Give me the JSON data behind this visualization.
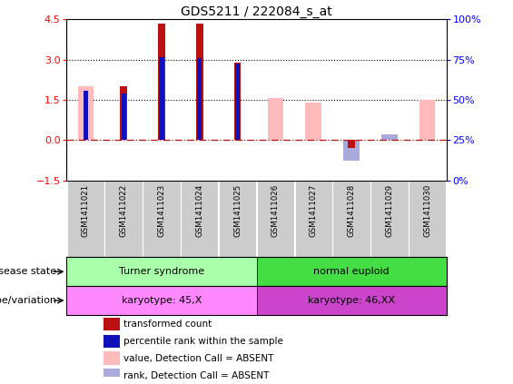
{
  "title": "GDS5211 / 222084_s_at",
  "samples": [
    "GSM1411021",
    "GSM1411022",
    "GSM1411023",
    "GSM1411024",
    "GSM1411025",
    "GSM1411026",
    "GSM1411027",
    "GSM1411028",
    "GSM1411029",
    "GSM1411030"
  ],
  "transformed_count": [
    null,
    2.0,
    4.35,
    4.35,
    2.9,
    null,
    null,
    -0.3,
    null,
    null
  ],
  "percentile_rank": [
    1.85,
    1.75,
    3.1,
    3.05,
    2.85,
    null,
    null,
    null,
    null,
    null
  ],
  "value_absent": [
    2.0,
    null,
    null,
    null,
    null,
    1.55,
    1.4,
    null,
    0.2,
    1.5
  ],
  "rank_absent": [
    null,
    null,
    null,
    null,
    null,
    null,
    null,
    -0.75,
    0.2,
    null
  ],
  "ylim_left": [
    -1.5,
    4.5
  ],
  "ylim_right": [
    0,
    100
  ],
  "yticks_left": [
    -1.5,
    0,
    1.5,
    3.0,
    4.5
  ],
  "yticks_right": [
    0,
    25,
    50,
    75,
    100
  ],
  "hlines": [
    1.5,
    3.0
  ],
  "disease_state": [
    {
      "label": "Turner syndrome",
      "start": 0,
      "end": 5,
      "color": "#AAFFAA"
    },
    {
      "label": "normal euploid",
      "start": 5,
      "end": 10,
      "color": "#44DD44"
    }
  ],
  "genotype": [
    {
      "label": "karyotype: 45,X",
      "start": 0,
      "end": 5,
      "color": "#FF88FF"
    },
    {
      "label": "karyotype: 46,XX",
      "start": 5,
      "end": 10,
      "color": "#CC44CC"
    }
  ],
  "legend_items": [
    {
      "color": "#BB1111",
      "label": "transformed count"
    },
    {
      "color": "#1111BB",
      "label": "percentile rank within the sample"
    },
    {
      "color": "#FFBBBB",
      "label": "value, Detection Call = ABSENT"
    },
    {
      "color": "#AAAADD",
      "label": "rank, Detection Call = ABSENT"
    }
  ],
  "tc_color": "#BB1111",
  "pr_color": "#1111BB",
  "va_color": "#FFBBBB",
  "ra_color": "#AAAADD",
  "sample_bg_color": "#CCCCCC",
  "zero_line_color": "#BB1111",
  "title_fontsize": 10
}
